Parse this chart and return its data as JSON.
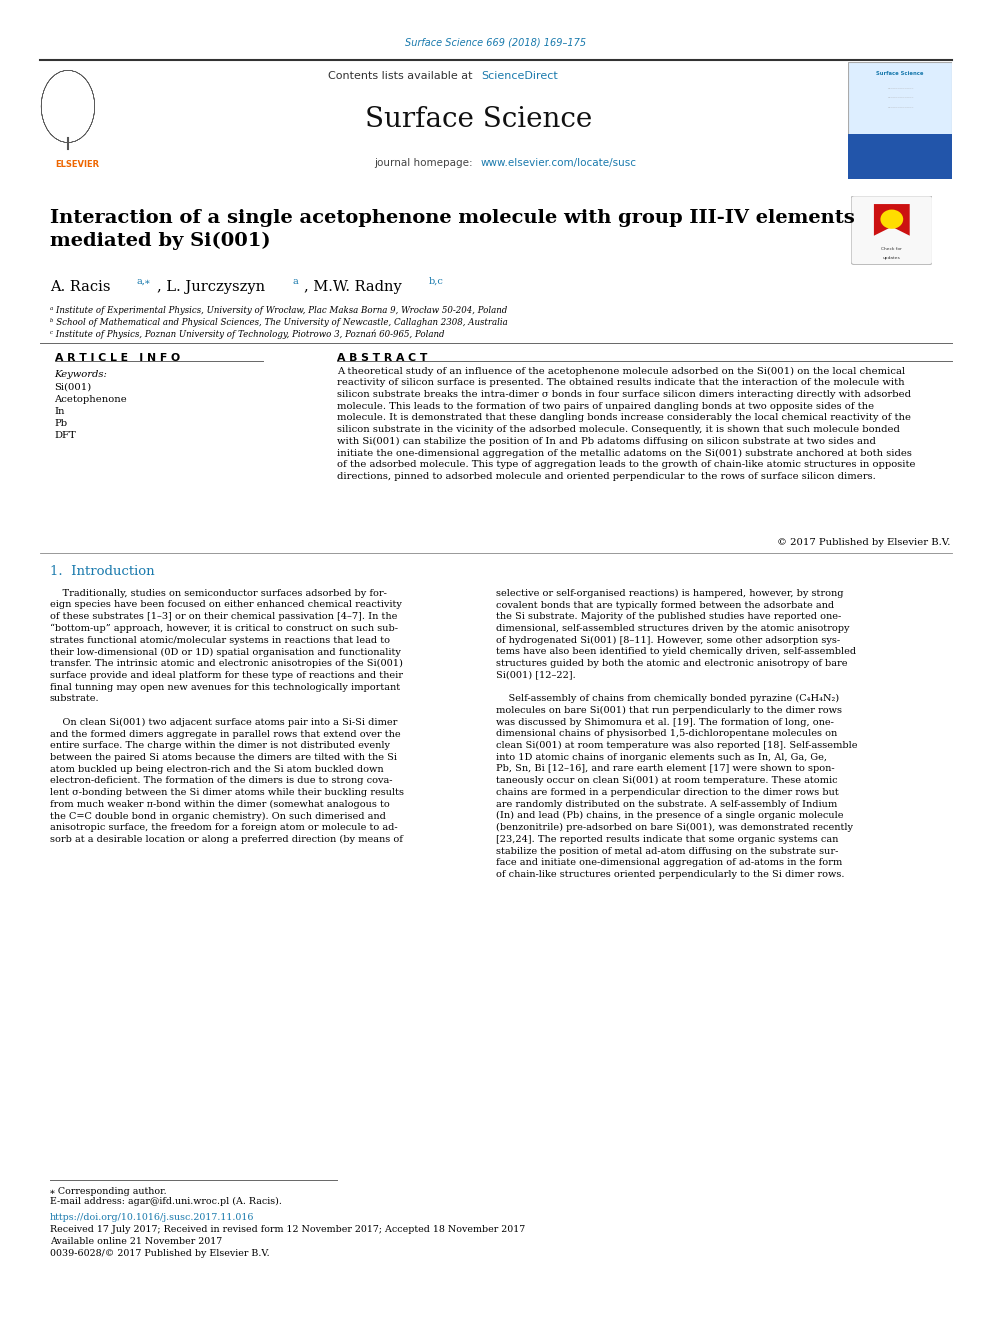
{
  "page_width": 9.92,
  "page_height": 13.23,
  "background_color": "#ffffff",
  "journal_ref": "Surface Science 669 (2018) 169–175",
  "journal_ref_color": "#1a7aad",
  "header_bg": "#efefef",
  "contents_text": "Contents lists available at ",
  "sciencedirect_text": "ScienceDirect",
  "sciencedirect_color": "#1a7aad",
  "journal_title": "Surface Science",
  "journal_homepage_prefix": "journal homepage: ",
  "journal_homepage_url": "www.elsevier.com/locate/susc",
  "journal_homepage_color": "#1a7aad",
  "header_bar_color": "#1a1a1a",
  "paper_title": "Interaction of a single acetophenone molecule with group III-IV elements\nmediated by Si(001)",
  "paper_title_color": "#000000",
  "affil_a": "ᵃ Institute of Experimental Physics, University of Wrocław, Plac Maksa Borna 9, Wrocław 50-204, Poland",
  "affil_b": "ᵇ School of Mathematical and Physical Sciences, The University of Newcastle, Callaghan 2308, Australia",
  "affil_c": "ᶜ Institute of Physics, Poznan University of Technology, Piotrowo 3, Poznań 60-965, Poland",
  "section_article_info": "A R T I C L E   I N F O",
  "section_abstract": "A B S T R A C T",
  "keywords_label": "Keywords:",
  "keywords": [
    "Si(001)",
    "Acetophenone",
    "In",
    "Pb",
    "DFT"
  ],
  "abstract_text": "A theoretical study of an influence of the acetophenone molecule adsorbed on the Si(001) on the local chemical\nreactivity of silicon surface is presented. The obtained results indicate that the interaction of the molecule with\nsilicon substrate breaks the intra-dimer σ bonds in four surface silicon dimers interacting directly with adsorbed\nmolecule. This leads to the formation of two pairs of unpaired dangling bonds at two opposite sides of the\nmolecule. It is demonstrated that these dangling bonds increase considerably the local chemical reactivity of the\nsilicon substrate in the vicinity of the adsorbed molecule. Consequently, it is shown that such molecule bonded\nwith Si(001) can stabilize the position of In and Pb adatoms diffusing on silicon substrate at two sides and\ninitiate the one-dimensional aggregation of the metallic adatoms on the Si(001) substrate anchored at both sides\nof the adsorbed molecule. This type of aggregation leads to the growth of chain-like atomic structures in opposite\ndirections, pinned to adsorbed molecule and oriented perpendicular to the rows of surface silicon dimers.",
  "copyright_text": "© 2017 Published by Elsevier B.V.",
  "section1_title": "1.  Introduction",
  "intro_col1_p1": "    Traditionally, studies on semiconductor surfaces adsorbed by for-\neign species have been focused on either enhanced chemical reactivity\nof these substrates [1–3] or on their chemical passivation [4–7]. In the\n“bottom-up” approach, however, it is critical to construct on such sub-\nstrates functional atomic/molecular systems in reactions that lead to\ntheir low-dimensional (0D or 1D) spatial organisation and functionality\ntransfer. The intrinsic atomic and electronic anisotropies of the Si(001)\nsurface provide and ideal platform for these type of reactions and their\nfinal tunning may open new avenues for this technologically important\nsubstrate.",
  "intro_col1_p2": "    On clean Si(001) two adjacent surface atoms pair into a Si-Si dimer\nand the formed dimers aggregate in parallel rows that extend over the\nentire surface. The charge within the dimer is not distributed evenly\nbetween the paired Si atoms because the dimers are tilted with the Si\natom buckled up being electron-rich and the Si atom buckled down\nelectron-deficient. The formation of the dimers is due to strong cova-\nlent σ-bonding between the Si dimer atoms while their buckling results\nfrom much weaker π-bond within the dimer (somewhat analogous to\nthe C=C double bond in organic chemistry). On such dimerised and\nanisotropic surface, the freedom for a foreign atom or molecule to ad-\nsorb at a desirable location or along a preferred direction (by means of",
  "intro_col2_p1": "selective or self-organised reactions) is hampered, however, by strong\ncovalent bonds that are typically formed between the adsorbate and\nthe Si substrate. Majority of the published studies have reported one-\ndimensional, self-assembled structures driven by the atomic anisotropy\nof hydrogenated Si(001) [8–11]. However, some other adsorption sys-\ntems have also been identified to yield chemically driven, self-assembled\nstructures guided by both the atomic and electronic anisotropy of bare\nSi(001) [12–22].",
  "intro_col2_p2": "    Self-assembly of chains from chemically bonded pyrazine (C₄H₄N₂)\nmolecules on bare Si(001) that run perpendicularly to the dimer rows\nwas discussed by Shimomura et al. [19]. The formation of long, one-\ndimensional chains of physisorbed 1,5-dichloropentane molecules on\nclean Si(001) at room temperature was also reported [18]. Self-assemble\ninto 1D atomic chains of inorganic elements such as In, Al, Ga, Ge,\nPb, Sn, Bi [12–16], and rare earth element [17] were shown to spon-\ntaneously occur on clean Si(001) at room temperature. These atomic\nchains are formed in a perpendicular direction to the dimer rows but\nare randomly distributed on the substrate. A self-assembly of Indium\n(In) and lead (Pb) chains, in the presence of a single organic molecule\n(benzonitrile) pre-adsorbed on bare Si(001), was demonstrated recently\n[23,24]. The reported results indicate that some organic systems can\nstabilize the position of metal ad-atom diffusing on the substrate sur-\nface and initiate one-dimensional aggregation of ad-atoms in the form\nof chain-like structures oriented perpendicularly to the Si dimer rows.",
  "footer_text1": "⁎ Corresponding author.",
  "footer_email": "E-mail address: agar@ifd.uni.wroc.pl (A. Racis).",
  "footer_doi": "https://doi.org/10.1016/j.susc.2017.11.016",
  "footer_received": "Received 17 July 2017; Received in revised form 12 November 2017; Accepted 18 November 2017",
  "footer_online": "Available online 21 November 2017",
  "footer_issn": "0039-6028/© 2017 Published by Elsevier B.V.",
  "link_color": "#1a7aad",
  "text_color": "#000000",
  "gray_text": "#555555"
}
